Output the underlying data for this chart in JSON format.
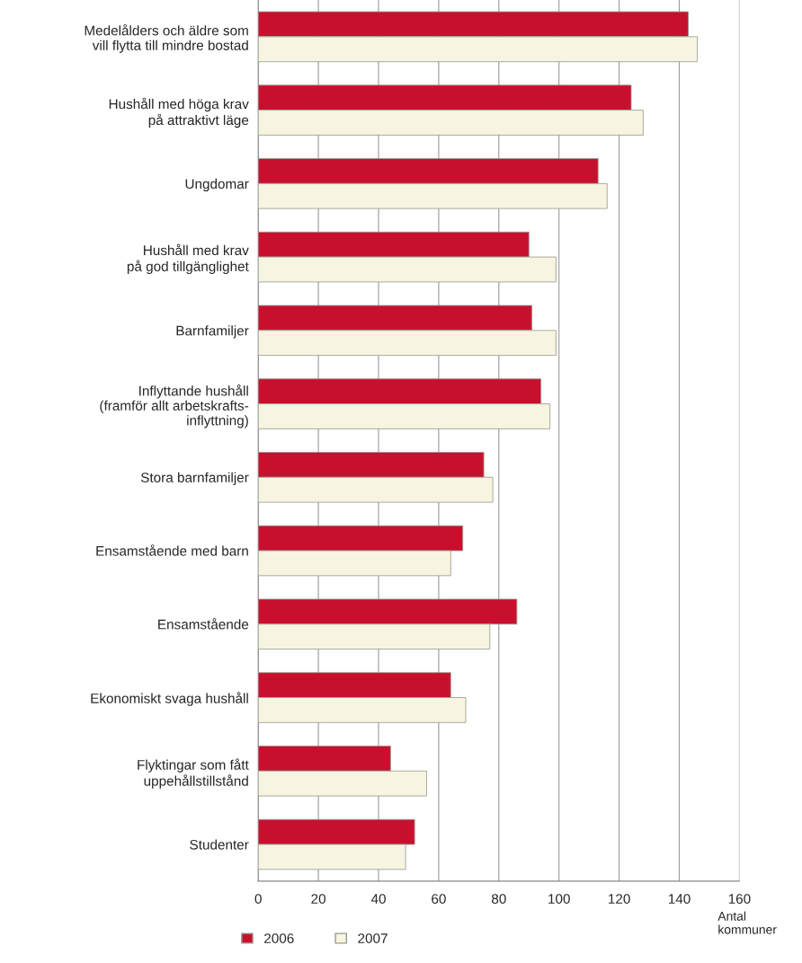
{
  "chart_data": {
    "type": "bar",
    "orientation": "horizontal",
    "categories": [
      "Medelålders och äldre som\nvill flytta till mindre bostad",
      "Hushåll med höga krav\npå attraktivt läge",
      "Ungdomar",
      "Hushåll med krav\npå god tillgänglighet",
      "Barnfamiljer",
      "Inflyttande hushåll\n(framför allt arbetskrafts-\ninflyttning)",
      "Stora barnfamiljer",
      "Ensamstående med barn",
      "Ensamstående",
      "Ekonomiskt svaga hushåll",
      "Flyktingar som fått\nuppehållstillstånd",
      "Studenter"
    ],
    "series": [
      {
        "name": "2006",
        "color": "#c8102e",
        "values": [
          143,
          124,
          113,
          90,
          91,
          94,
          75,
          68,
          86,
          64,
          44,
          52
        ]
      },
      {
        "name": "2007",
        "color": "#f7f5e1",
        "values": [
          146,
          128,
          116,
          99,
          99,
          97,
          78,
          64,
          77,
          69,
          56,
          49
        ]
      }
    ],
    "xlabel": "Antal\nkommuner",
    "xlim": [
      0,
      160
    ],
    "xticks": [
      0,
      20,
      40,
      60,
      80,
      100,
      120,
      140,
      160
    ],
    "grid": "x",
    "legend": "bottom left"
  }
}
